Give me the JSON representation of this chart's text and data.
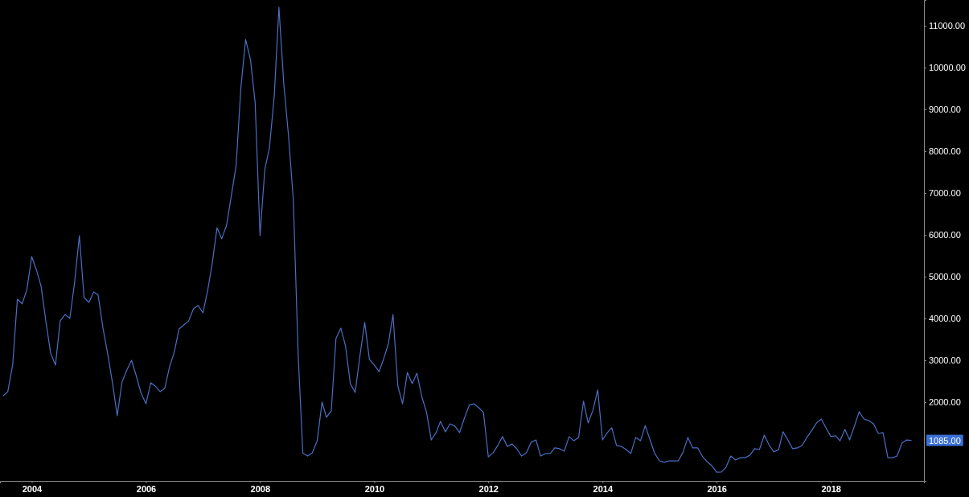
{
  "chart_data": {
    "type": "line",
    "x": [
      "2003-07",
      "2003-08",
      "2003-09",
      "2003-10",
      "2003-11",
      "2003-12",
      "2004-01",
      "2004-02",
      "2004-03",
      "2004-04",
      "2004-05",
      "2004-06",
      "2004-07",
      "2004-08",
      "2004-09",
      "2004-10",
      "2004-11",
      "2004-12",
      "2005-01",
      "2005-02",
      "2005-03",
      "2005-04",
      "2005-05",
      "2005-06",
      "2005-07",
      "2005-08",
      "2005-09",
      "2005-10",
      "2005-11",
      "2005-12",
      "2006-01",
      "2006-02",
      "2006-03",
      "2006-04",
      "2006-05",
      "2006-06",
      "2006-07",
      "2006-08",
      "2006-09",
      "2006-10",
      "2006-11",
      "2006-12",
      "2007-01",
      "2007-02",
      "2007-03",
      "2007-04",
      "2007-05",
      "2007-06",
      "2007-07",
      "2007-08",
      "2007-09",
      "2007-10",
      "2007-11",
      "2007-12",
      "2008-01",
      "2008-02",
      "2008-03",
      "2008-04",
      "2008-05",
      "2008-06",
      "2008-07",
      "2008-08",
      "2008-09",
      "2008-10",
      "2008-11",
      "2008-12",
      "2009-01",
      "2009-02",
      "2009-03",
      "2009-04",
      "2009-05",
      "2009-06",
      "2009-07",
      "2009-08",
      "2009-09",
      "2009-10",
      "2009-11",
      "2009-12",
      "2010-01",
      "2010-02",
      "2010-03",
      "2010-04",
      "2010-05",
      "2010-06",
      "2010-07",
      "2010-08",
      "2010-09",
      "2010-10",
      "2010-11",
      "2010-12",
      "2011-01",
      "2011-02",
      "2011-03",
      "2011-04",
      "2011-05",
      "2011-06",
      "2011-07",
      "2011-08",
      "2011-09",
      "2011-10",
      "2011-11",
      "2011-12",
      "2012-01",
      "2012-02",
      "2012-03",
      "2012-04",
      "2012-05",
      "2012-06",
      "2012-07",
      "2012-08",
      "2012-09",
      "2012-10",
      "2012-11",
      "2012-12",
      "2013-01",
      "2013-02",
      "2013-03",
      "2013-04",
      "2013-05",
      "2013-06",
      "2013-07",
      "2013-08",
      "2013-09",
      "2013-10",
      "2013-11",
      "2013-12",
      "2014-01",
      "2014-02",
      "2014-03",
      "2014-04",
      "2014-05",
      "2014-06",
      "2014-07",
      "2014-08",
      "2014-09",
      "2014-10",
      "2014-11",
      "2014-12",
      "2015-01",
      "2015-02",
      "2015-03",
      "2015-04",
      "2015-05",
      "2015-06",
      "2015-07",
      "2015-08",
      "2015-09",
      "2015-10",
      "2015-11",
      "2015-12",
      "2016-01",
      "2016-02",
      "2016-03",
      "2016-04",
      "2016-05",
      "2016-06",
      "2016-07",
      "2016-08",
      "2016-09",
      "2016-10",
      "2016-11",
      "2016-12",
      "2017-01",
      "2017-02",
      "2017-03",
      "2017-04",
      "2017-05",
      "2017-06",
      "2017-07",
      "2017-08",
      "2017-09",
      "2017-10",
      "2017-11",
      "2017-12",
      "2018-01",
      "2018-02",
      "2018-03",
      "2018-04",
      "2018-05",
      "2018-06",
      "2018-07",
      "2018-08",
      "2018-09",
      "2018-10",
      "2018-11",
      "2018-12",
      "2019-01",
      "2019-02",
      "2019-03",
      "2019-04",
      "2019-05",
      "2019-06"
    ],
    "series": [
      {
        "color": "#4a6fc4",
        "values": [
          2150,
          2250,
          2885,
          4460,
          4350,
          4690,
          5480,
          5150,
          4770,
          3920,
          3170,
          2885,
          3940,
          4095,
          4000,
          4850,
          5980,
          4500,
          4385,
          4635,
          4560,
          3770,
          3155,
          2460,
          1675,
          2480,
          2770,
          3000,
          2615,
          2210,
          1960,
          2460,
          2385,
          2250,
          2325,
          2845,
          3190,
          3750,
          3845,
          3940,
          4230,
          4310,
          4135,
          4690,
          5310,
          6170,
          5905,
          6230,
          6925,
          7655,
          9540,
          10670,
          10190,
          9155,
          5980,
          7575,
          8075,
          9310,
          11440,
          9615,
          8385,
          6845,
          3155,
          780,
          710,
          790,
          1075,
          2000,
          1635,
          1790,
          3520,
          3770,
          3345,
          2440,
          2230,
          3095,
          3905,
          3020,
          2885,
          2730,
          3020,
          3385,
          4095,
          2385,
          1960,
          2710,
          2440,
          2690,
          2135,
          1770,
          1095,
          1270,
          1540,
          1290,
          1480,
          1425,
          1270,
          1615,
          1925,
          1960,
          1865,
          1750,
          690,
          790,
          960,
          1175,
          940,
          1000,
          885,
          710,
          790,
          1040,
          1095,
          710,
          770,
          770,
          905,
          885,
          825,
          1175,
          1075,
          1155,
          2020,
          1500,
          1810,
          2290,
          1095,
          1270,
          1385,
          960,
          940,
          865,
          770,
          1155,
          1075,
          1440,
          1095,
          770,
          595,
          560,
          595,
          595,
          595,
          810,
          1155,
          905,
          905,
          710,
          575,
          480,
          325,
          330,
          440,
          710,
          615,
          670,
          670,
          730,
          885,
          865,
          1210,
          980,
          810,
          865,
          1290,
          1095,
          885,
          905,
          960,
          1155,
          1325,
          1500,
          1595,
          1385,
          1175,
          1195,
          1075,
          1345,
          1095,
          1425,
          1770,
          1595,
          1555,
          1480,
          1250,
          1270,
          670,
          670,
          710,
          1020,
          1095,
          1085
        ]
      }
    ],
    "xlim": [
      "2003-06-12",
      "2019-08-20"
    ],
    "xticks": [
      {
        "value": "2004",
        "label": "2004"
      },
      {
        "value": "2006",
        "label": "2006"
      },
      {
        "value": "2008",
        "label": "2008"
      },
      {
        "value": "2010",
        "label": "2010"
      },
      {
        "value": "2012",
        "label": "2012"
      },
      {
        "value": "2014",
        "label": "2014"
      },
      {
        "value": "2016",
        "label": "2016"
      },
      {
        "value": "2018",
        "label": "2018"
      }
    ],
    "ylim": [
      115,
      11615
    ],
    "yticks": [
      {
        "value": 2000,
        "label": "2000.00"
      },
      {
        "value": 3000,
        "label": "3000.00"
      },
      {
        "value": 4000,
        "label": "4000.00"
      },
      {
        "value": 5000,
        "label": "5000.00"
      },
      {
        "value": 6000,
        "label": "6000.00"
      },
      {
        "value": 7000,
        "label": "7000.00"
      },
      {
        "value": 8000,
        "label": "8000.00"
      },
      {
        "value": 9000,
        "label": "9000.00"
      },
      {
        "value": 10000,
        "label": "10000.00"
      },
      {
        "value": 11000,
        "label": "11000.00"
      }
    ],
    "annotations": [
      "1085.00"
    ],
    "grid": false,
    "marker": "none",
    "line_style": "solid"
  }
}
